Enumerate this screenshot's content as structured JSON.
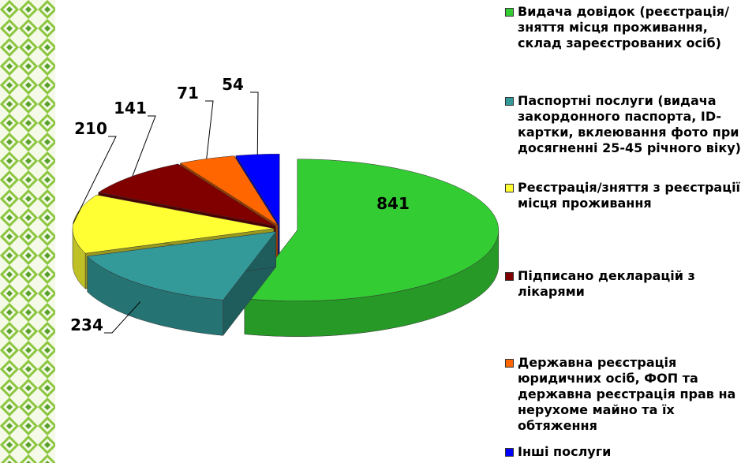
{
  "chart_data": {
    "type": "pie3d",
    "categories": [
      "Видача довідок (реєстрація/зняття місця проживання, склад зареєстрованих осіб)",
      "Паспортні послуги (видача закордонного паспорта, ID-картки, вклеювання фото при досягненні 25-45 річного віку)",
      "Реєстрація/зняття з реєстрації місця проживання",
      "Підписано декларацій з лікарями",
      "Державна реєстрація юридичних осіб, ФОП та державна реєстрація прав на нерухоме майно та їх обтяження",
      "Інші послуги"
    ],
    "values": [
      841,
      234,
      210,
      141,
      71,
      54
    ],
    "colors": [
      "#33cc33",
      "#339999",
      "#ffff33",
      "#800000",
      "#ff6600",
      "#0000ff"
    ],
    "legend": "right"
  }
}
